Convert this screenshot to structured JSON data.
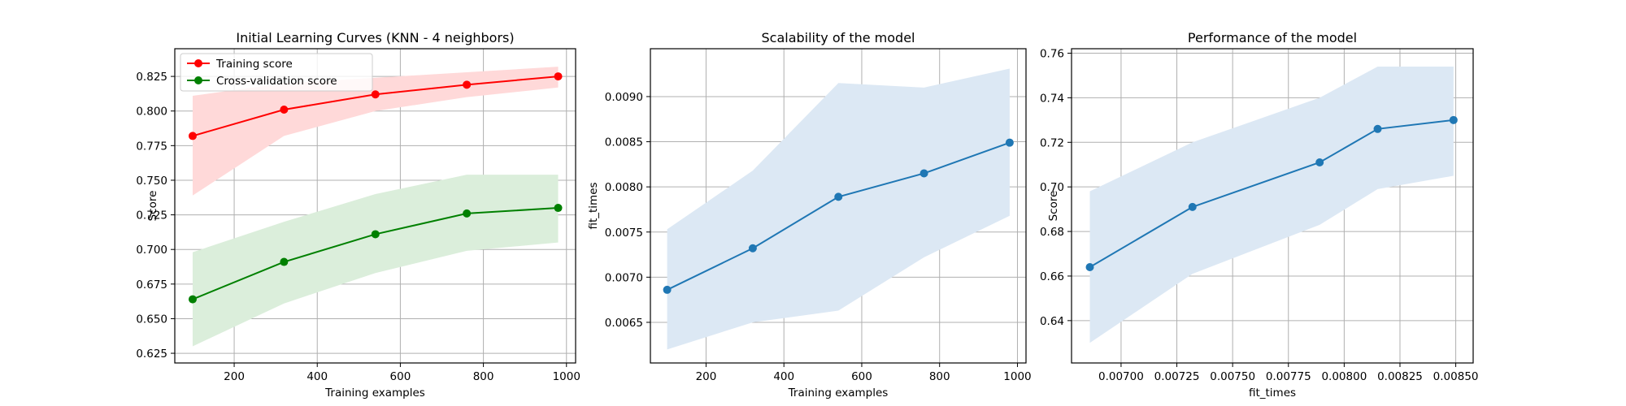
{
  "colors": {
    "training": "#ff0000",
    "cv": "#008000",
    "line": "#1f77b4",
    "band": "#dce8f4",
    "band_train": "#ffd9d9",
    "band_cv": "#dbeedb",
    "grid": "#b0b0b0"
  },
  "chart_data": [
    {
      "type": "line",
      "title": "Initial Learning Curves (KNN - 4 neighbors)",
      "xlabel": "Training examples",
      "ylabel": "Score",
      "xlim": [
        57,
        1022
      ],
      "ylim": [
        0.618,
        0.845
      ],
      "xticks": [
        200,
        400,
        600,
        800,
        1000
      ],
      "xtick_labels": [
        "200",
        "400",
        "600",
        "800",
        "1000"
      ],
      "yticks": [
        0.625,
        0.65,
        0.675,
        0.7,
        0.725,
        0.75,
        0.775,
        0.8,
        0.825
      ],
      "ytick_labels": [
        "0.625",
        "0.650",
        "0.675",
        "0.700",
        "0.725",
        "0.750",
        "0.775",
        "0.800",
        "0.825"
      ],
      "grid": true,
      "legend": "top-left",
      "x": [
        100,
        320,
        540,
        760,
        980
      ],
      "series": [
        {
          "name": "Training score",
          "color": "#ff0000",
          "band_color": "#ffd9d9",
          "values": [
            0.782,
            0.801,
            0.812,
            0.819,
            0.825
          ],
          "lower": [
            0.739,
            0.782,
            0.8,
            0.81,
            0.817
          ],
          "upper": [
            0.811,
            0.82,
            0.824,
            0.828,
            0.832
          ]
        },
        {
          "name": "Cross-validation score",
          "color": "#008000",
          "band_color": "#dbeedb",
          "values": [
            0.664,
            0.691,
            0.711,
            0.726,
            0.73
          ],
          "lower": [
            0.63,
            0.661,
            0.683,
            0.699,
            0.705
          ],
          "upper": [
            0.698,
            0.72,
            0.74,
            0.754,
            0.754
          ]
        }
      ]
    },
    {
      "type": "line",
      "title": "Scalability of the model",
      "xlabel": "Training examples",
      "ylabel": "fit_times",
      "xlim": [
        57,
        1022
      ],
      "ylim": [
        0.00605,
        0.00953
      ],
      "xticks": [
        200,
        400,
        600,
        800,
        1000
      ],
      "xtick_labels": [
        "200",
        "400",
        "600",
        "800",
        "1000"
      ],
      "yticks": [
        0.0065,
        0.007,
        0.0075,
        0.008,
        0.0085,
        0.009
      ],
      "ytick_labels": [
        "0.0065",
        "0.0070",
        "0.0075",
        "0.0080",
        "0.0085",
        "0.0090"
      ],
      "grid": true,
      "x": [
        100,
        320,
        540,
        760,
        980
      ],
      "series": [
        {
          "color": "#1f77b4",
          "band_color": "#dce8f4",
          "values": [
            0.00686,
            0.00732,
            0.00789,
            0.00815,
            0.00849
          ],
          "lower": [
            0.0062,
            0.0065,
            0.00663,
            0.00722,
            0.00768
          ],
          "upper": [
            0.00753,
            0.00818,
            0.00915,
            0.0091,
            0.00931
          ]
        }
      ]
    },
    {
      "type": "line",
      "title": "Performance of the model",
      "xlabel": "fit_times",
      "ylabel": "Score",
      "xlim": [
        0.006778,
        0.008578
      ],
      "ylim": [
        0.621,
        0.762
      ],
      "xticks": [
        0.007,
        0.00725,
        0.0075,
        0.00775,
        0.008,
        0.00825,
        0.0085
      ],
      "xtick_labels": [
        "0.00700",
        "0.00725",
        "0.00750",
        "0.00775",
        "0.00800",
        "0.00825",
        "0.00850"
      ],
      "yticks": [
        0.64,
        0.66,
        0.68,
        0.7,
        0.72,
        0.74,
        0.76
      ],
      "ytick_labels": [
        "0.64",
        "0.66",
        "0.68",
        "0.70",
        "0.72",
        "0.74",
        "0.76"
      ],
      "grid": true,
      "x": [
        0.00686,
        0.00732,
        0.00789,
        0.00815,
        0.00849
      ],
      "series": [
        {
          "color": "#1f77b4",
          "band_color": "#dce8f4",
          "values": [
            0.664,
            0.691,
            0.711,
            0.726,
            0.73
          ],
          "lower": [
            0.63,
            0.661,
            0.683,
            0.699,
            0.705
          ],
          "upper": [
            0.698,
            0.72,
            0.74,
            0.754,
            0.754
          ]
        }
      ]
    }
  ]
}
